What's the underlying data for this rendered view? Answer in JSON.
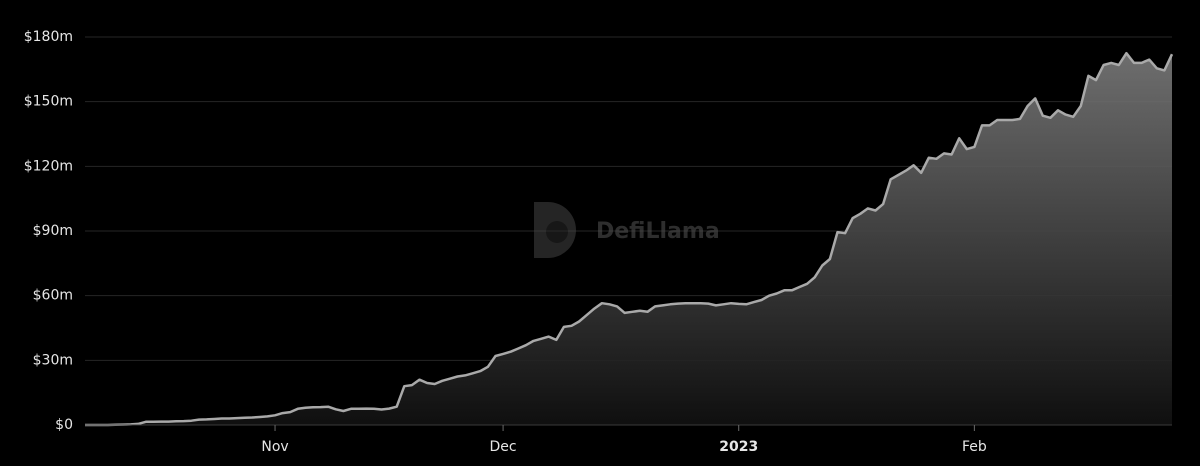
{
  "chart_data": {
    "type": "area",
    "watermark": "DefiLlama",
    "color": "#a9a9a9",
    "grid": true,
    "categories": [
      null,
      null,
      null,
      null,
      null,
      null,
      null,
      null,
      null,
      null,
      null,
      null,
      null,
      null,
      null,
      null,
      null,
      null,
      null,
      null,
      null,
      null,
      null,
      null,
      null,
      "Nov",
      null,
      null,
      null,
      null,
      null,
      null,
      null,
      null,
      null,
      null,
      null,
      null,
      null,
      null,
      null,
      null,
      null,
      null,
      null,
      null,
      null,
      null,
      null,
      null,
      null,
      null,
      null,
      null,
      null,
      "Dec",
      null,
      null,
      null,
      null,
      null,
      null,
      null,
      null,
      null,
      null,
      null,
      null,
      null,
      null,
      null,
      null,
      null,
      null,
      null,
      null,
      null,
      null,
      null,
      null,
      null,
      null,
      null,
      null,
      null,
      null,
      "2023",
      null,
      null,
      null,
      null,
      null,
      null,
      null,
      null,
      null,
      null,
      null,
      null,
      null,
      null,
      null,
      null,
      null,
      null,
      null,
      null,
      null,
      null,
      null,
      null,
      null,
      null,
      null,
      null,
      null,
      null,
      "Feb",
      null,
      null,
      null,
      null,
      null,
      null,
      null,
      null,
      null,
      null,
      null,
      null,
      null,
      null,
      null,
      null,
      null,
      null,
      null,
      null,
      null,
      null,
      null,
      null,
      null,
      null
    ],
    "values": [
      0,
      0,
      0,
      0,
      0.1,
      0.2,
      0.3,
      0.5,
      1.5,
      1.5,
      1.6,
      1.6,
      1.7,
      1.8,
      2,
      2.5,
      2.6,
      2.8,
      3,
      3,
      3.2,
      3.4,
      3.5,
      3.7,
      4,
      4.5,
      5.5,
      6,
      7.5,
      8,
      8.2,
      8.3,
      8.5,
      7.3,
      6.5,
      7.5,
      7.5,
      7.6,
      7.5,
      7.2,
      7.6,
      8.5,
      18,
      18.5,
      21,
      19.5,
      19,
      20.5,
      21.5,
      22.5,
      23,
      24,
      25,
      27,
      32,
      33,
      34,
      35.5,
      37,
      39,
      40,
      41,
      39.5,
      45.5,
      46,
      48,
      51,
      54,
      56.5,
      56,
      55,
      52,
      52.5,
      53,
      52.5,
      55,
      55.5,
      56,
      56.3,
      56.5,
      56.5,
      56.5,
      56.3,
      55.5,
      56,
      56.5,
      56.2,
      56,
      57,
      58,
      60,
      61,
      62.5,
      62.5,
      64,
      65.5,
      68.5,
      74,
      77,
      89.5,
      89,
      96,
      98,
      100.5,
      99.5,
      102.5,
      114,
      116,
      118,
      120.5,
      117,
      124,
      123.5,
      126,
      125.5,
      133,
      128,
      129,
      139,
      139,
      141.5,
      141.5,
      141.5,
      142,
      148,
      151.5,
      143.5,
      142.5,
      146,
      144,
      143,
      148,
      162,
      160,
      167,
      168,
      167,
      172.5,
      168,
      168,
      169.5,
      165.5,
      164.5,
      172
    ],
    "ylim": [
      0,
      180
    ],
    "yticks": [
      {
        "value": 0,
        "label": "$0"
      },
      {
        "value": 30,
        "label": "$30m"
      },
      {
        "value": 60,
        "label": "$60m"
      },
      {
        "value": 90,
        "label": "$90m"
      },
      {
        "value": 120,
        "label": "$120m"
      },
      {
        "value": 150,
        "label": "$150m"
      },
      {
        "value": 180,
        "label": "$180m"
      }
    ]
  }
}
